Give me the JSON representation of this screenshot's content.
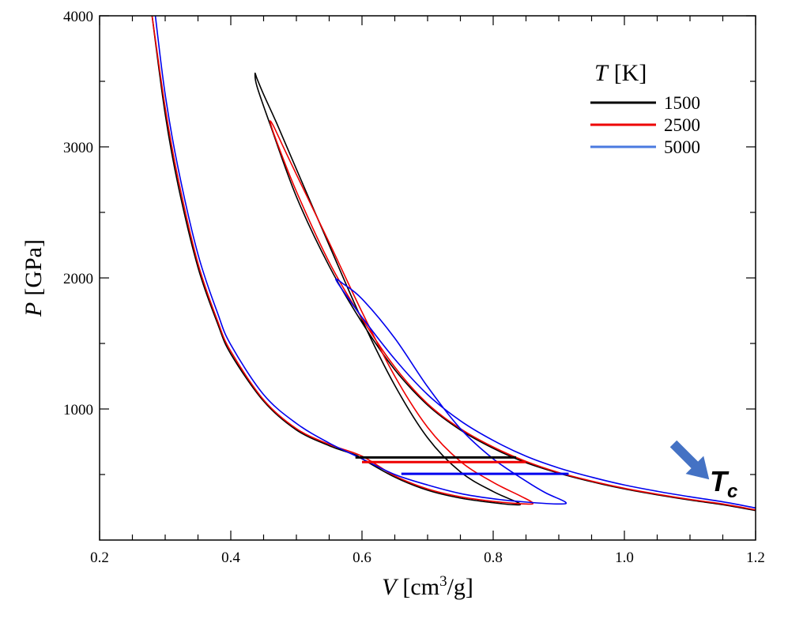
{
  "chart_data": {
    "type": "line",
    "title": "",
    "xlabel": {
      "var": "V",
      "unit_pre": "[cm",
      "unit_sup": "3",
      "unit_post": "/g]"
    },
    "ylabel": {
      "var": "P",
      "unit": "[GPa]"
    },
    "xlim": [
      0.2,
      1.2
    ],
    "ylim": [
      0,
      4000
    ],
    "xticks": [
      0.2,
      0.4,
      0.6,
      0.8,
      1.0,
      1.2
    ],
    "xtick_labels": [
      "0.2",
      "0.4",
      "0.6",
      "0.8",
      "1.0",
      "1.2"
    ],
    "yticks": [
      1000,
      2000,
      3000,
      4000
    ],
    "ytick_labels": [
      "1000",
      "2000",
      "3000",
      "4000"
    ],
    "legend": {
      "title_var": "T",
      "title_unit": "[K]",
      "position": "top-right",
      "entries": [
        "1500",
        "2500",
        "5000"
      ]
    },
    "annotation": {
      "text": "T",
      "subscript": "c",
      "arrow_color": "#4472c4"
    },
    "series": [
      {
        "name": "1500",
        "color": "#000000",
        "outer_branch": [
          [
            0.28,
            4000
          ],
          [
            0.3,
            3250
          ],
          [
            0.32,
            2700
          ],
          [
            0.35,
            2080
          ],
          [
            0.38,
            1650
          ],
          [
            0.4,
            1420
          ],
          [
            0.45,
            1060
          ],
          [
            0.5,
            840
          ],
          [
            0.55,
            720
          ],
          [
            0.59,
            650
          ],
          [
            0.6,
            620
          ],
          [
            0.65,
            480
          ],
          [
            0.7,
            380
          ],
          [
            0.75,
            320
          ],
          [
            0.8,
            285
          ],
          [
            0.83,
            270
          ],
          [
            0.84,
            280
          ]
        ],
        "inner_branch": [
          [
            0.84,
            280
          ],
          [
            0.8,
            370
          ],
          [
            0.75,
            520
          ],
          [
            0.7,
            780
          ],
          [
            0.65,
            1180
          ],
          [
            0.6,
            1680
          ],
          [
            0.55,
            2250
          ],
          [
            0.5,
            2830
          ],
          [
            0.47,
            3180
          ],
          [
            0.45,
            3400
          ],
          [
            0.44,
            3520
          ],
          [
            0.437,
            3560
          ],
          [
            0.44,
            3460
          ],
          [
            0.46,
            3170
          ],
          [
            0.5,
            2620
          ],
          [
            0.55,
            2090
          ],
          [
            0.6,
            1660
          ],
          [
            0.65,
            1300
          ],
          [
            0.7,
            1030
          ],
          [
            0.75,
            840
          ],
          [
            0.8,
            700
          ],
          [
            0.85,
            590
          ],
          [
            0.9,
            510
          ],
          [
            0.95,
            445
          ],
          [
            1.0,
            390
          ],
          [
            1.05,
            345
          ],
          [
            1.1,
            305
          ],
          [
            1.15,
            270
          ],
          [
            1.2,
            225
          ]
        ],
        "tie_line": {
          "v": [
            0.59,
            0.835
          ],
          "p": 630
        }
      },
      {
        "name": "2500",
        "color": "#ee0000",
        "outer_branch": [
          [
            0.28,
            4000
          ],
          [
            0.3,
            3300
          ],
          [
            0.32,
            2750
          ],
          [
            0.35,
            2110
          ],
          [
            0.38,
            1670
          ],
          [
            0.4,
            1440
          ],
          [
            0.45,
            1070
          ],
          [
            0.5,
            850
          ],
          [
            0.55,
            730
          ],
          [
            0.6,
            640
          ],
          [
            0.65,
            490
          ],
          [
            0.7,
            390
          ],
          [
            0.75,
            330
          ],
          [
            0.8,
            295
          ],
          [
            0.85,
            275
          ],
          [
            0.86,
            285
          ]
        ],
        "inner_branch": [
          [
            0.86,
            285
          ],
          [
            0.84,
            340
          ],
          [
            0.8,
            440
          ],
          [
            0.75,
            600
          ],
          [
            0.7,
            860
          ],
          [
            0.65,
            1250
          ],
          [
            0.6,
            1740
          ],
          [
            0.55,
            2270
          ],
          [
            0.5,
            2790
          ],
          [
            0.48,
            3000
          ],
          [
            0.465,
            3160
          ],
          [
            0.46,
            3190
          ],
          [
            0.47,
            3040
          ],
          [
            0.5,
            2660
          ],
          [
            0.55,
            2120
          ],
          [
            0.6,
            1690
          ],
          [
            0.65,
            1320
          ],
          [
            0.7,
            1040
          ],
          [
            0.75,
            850
          ],
          [
            0.8,
            710
          ],
          [
            0.85,
            600
          ],
          [
            0.9,
            515
          ],
          [
            0.95,
            450
          ],
          [
            1.0,
            395
          ],
          [
            1.05,
            350
          ],
          [
            1.1,
            310
          ],
          [
            1.15,
            275
          ],
          [
            1.2,
            230
          ]
        ],
        "tie_line": {
          "v": [
            0.6,
            0.85
          ],
          "p": 595
        }
      },
      {
        "name": "5000",
        "color": "#0000ee",
        "outer_branch": [
          [
            0.285,
            4000
          ],
          [
            0.3,
            3400
          ],
          [
            0.32,
            2830
          ],
          [
            0.35,
            2180
          ],
          [
            0.38,
            1730
          ],
          [
            0.4,
            1490
          ],
          [
            0.45,
            1110
          ],
          [
            0.5,
            890
          ],
          [
            0.55,
            740
          ],
          [
            0.6,
            620
          ],
          [
            0.65,
            500
          ],
          [
            0.7,
            420
          ],
          [
            0.75,
            355
          ],
          [
            0.8,
            315
          ],
          [
            0.85,
            290
          ],
          [
            0.9,
            275
          ],
          [
            0.91,
            290
          ]
        ],
        "inner_branch": [
          [
            0.91,
            290
          ],
          [
            0.88,
            360
          ],
          [
            0.85,
            450
          ],
          [
            0.8,
            620
          ],
          [
            0.75,
            850
          ],
          [
            0.7,
            1170
          ],
          [
            0.65,
            1540
          ],
          [
            0.6,
            1840
          ],
          [
            0.57,
            1960
          ],
          [
            0.56,
            1990
          ],
          [
            0.57,
            1910
          ],
          [
            0.6,
            1700
          ],
          [
            0.65,
            1380
          ],
          [
            0.7,
            1110
          ],
          [
            0.75,
            910
          ],
          [
            0.8,
            760
          ],
          [
            0.85,
            640
          ],
          [
            0.9,
            550
          ],
          [
            0.95,
            480
          ],
          [
            1.0,
            420
          ],
          [
            1.05,
            372
          ],
          [
            1.1,
            330
          ],
          [
            1.15,
            292
          ],
          [
            1.2,
            245
          ]
        ],
        "tie_line": {
          "v": [
            0.66,
            0.915
          ],
          "p": 505
        }
      }
    ]
  }
}
